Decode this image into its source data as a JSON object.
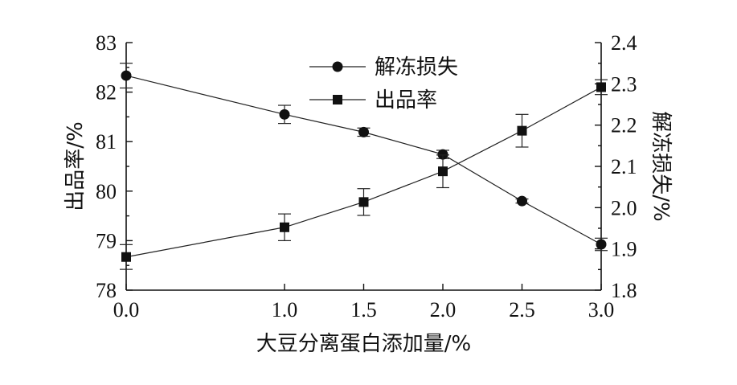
{
  "chart_data": {
    "type": "line",
    "title": "",
    "xlabel": "大豆分离蛋白添加量/%",
    "ylabel_left": "出品率/%",
    "ylabel_right": "解冻损失/%",
    "x": [
      0.0,
      1.0,
      1.5,
      2.0,
      2.5,
      3.0
    ],
    "x_ticks": [
      "0.0",
      "1.0",
      "1.5",
      "2.0",
      "2.5",
      "3.0"
    ],
    "y_left_ticks": [
      "78",
      "79",
      "80",
      "81",
      "82",
      "83"
    ],
    "y_right_ticks": [
      "1.8",
      "1.9",
      "2.0",
      "2.1",
      "2.2",
      "2.3",
      "2.4"
    ],
    "ylim_left": [
      78,
      83
    ],
    "ylim_right": [
      1.8,
      2.4
    ],
    "grid": false,
    "legend_position": "top-center",
    "series": [
      {
        "name": "解冻损失",
        "axis": "right",
        "marker": "circle",
        "values": [
          2.32,
          2.226,
          2.183,
          2.129,
          2.016,
          1.911
        ],
        "errors": [
          0.03,
          0.022,
          0.01,
          0.01,
          0.005,
          0.015
        ]
      },
      {
        "name": "出品率",
        "axis": "left",
        "marker": "square",
        "values": [
          78.67,
          79.27,
          79.78,
          80.4,
          81.22,
          82.1
        ],
        "errors": [
          0.25,
          0.27,
          0.27,
          0.33,
          0.33,
          0.15
        ]
      }
    ],
    "colors": {
      "line": "#222222",
      "marker": "#111111",
      "axis": "#111111"
    }
  }
}
